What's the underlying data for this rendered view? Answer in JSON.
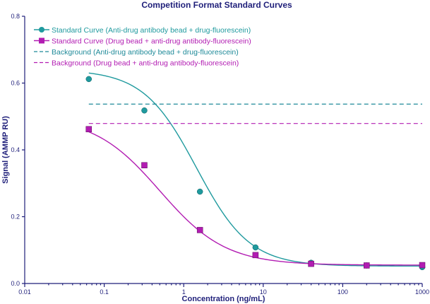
{
  "chart_data": {
    "type": "line",
    "title": "Competition Format Standard Curves",
    "xlabel": "Concentration (ng/mL)",
    "ylabel": "Signal (AMMP RU)",
    "x_scale": "log",
    "xlim": [
      0.01,
      1000
    ],
    "ylim": [
      0.0,
      0.8
    ],
    "x_ticks": [
      0.01,
      0.1,
      1,
      10,
      100,
      1000
    ],
    "x_tick_labels": [
      "0.01",
      "0.1",
      "1",
      "10",
      "100",
      "1000"
    ],
    "y_ticks": [
      0.0,
      0.2,
      0.4,
      0.6,
      0.8
    ],
    "y_tick_labels": [
      "0.0",
      "0.2",
      "0.4",
      "0.6",
      "0.8"
    ],
    "legend_position": "top-left",
    "grid": false,
    "series": [
      {
        "name": "Standard Curve (Anti-drug antibody bead + drug-fluorescein)",
        "color": "#1f9a9e",
        "marker": "circle",
        "x": [
          0.064,
          0.32,
          1.6,
          8,
          40,
          200,
          1000
        ],
        "y": [
          0.612,
          0.518,
          0.275,
          0.108,
          0.062,
          0.054,
          0.049
        ],
        "fit": {
          "top": 0.64,
          "bottom": 0.052,
          "ec50": 1.45,
          "hill": 1.3,
          "x_from": 0.064,
          "x_to": 1000
        }
      },
      {
        "name": "Standard Curve (Drug bead + anti-drug antibody-fluorescein)",
        "color": "#b21cb2",
        "marker": "square",
        "x": [
          0.064,
          0.32,
          1.6,
          8,
          40,
          200,
          1000
        ],
        "y": [
          0.462,
          0.354,
          0.16,
          0.085,
          0.059,
          0.054,
          0.055
        ],
        "fit": {
          "top": 0.5,
          "bottom": 0.055,
          "ec50": 0.5,
          "hill": 1.05,
          "x_from": 0.064,
          "x_to": 1000
        }
      },
      {
        "name": "Background (Anti-drug antibody bead + drug-fluorescein)",
        "color": "#1f8a99",
        "style": "dashed",
        "x": [
          0.064,
          1000
        ],
        "y": [
          0.537,
          0.537
        ]
      },
      {
        "name": "Background (Drug bead + anti-drug antibody-fluorescein)",
        "color": "#b21cb2",
        "style": "dashed",
        "x": [
          0.064,
          1000
        ],
        "y": [
          0.479,
          0.479
        ]
      }
    ]
  }
}
